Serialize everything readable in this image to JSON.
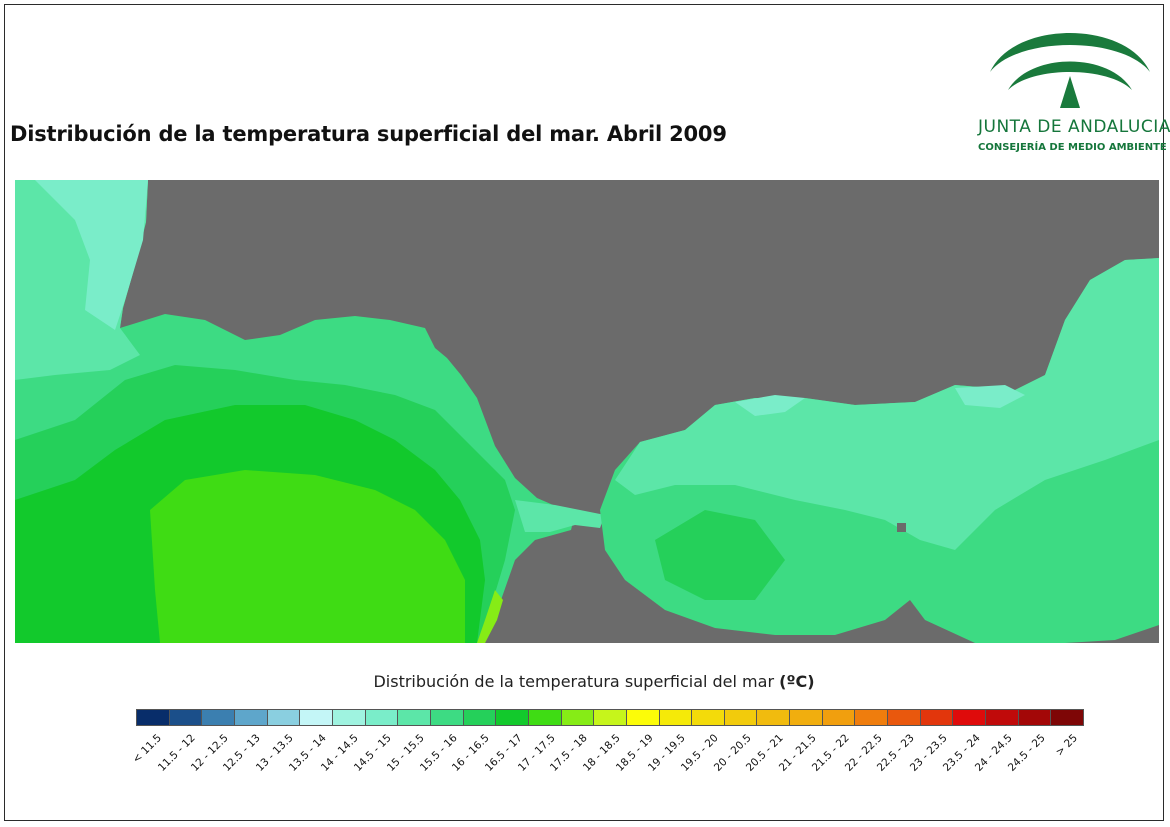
{
  "title": "Distribución de la temperatura superficial del mar. Abril 2009",
  "logo": {
    "name": "JUNTA DE ANDALUCIA",
    "subtitle": "CONSEJERÍA DE MEDIO AMBIENTE",
    "color": "#1a7a3c"
  },
  "legend": {
    "title": "Distribución de la temperatura superficial del mar",
    "unit": "(ºC)",
    "classes": [
      {
        "label": "< 11.5",
        "color": "#082d6a"
      },
      {
        "label": "11.5 - 12",
        "color": "#1b4f8a"
      },
      {
        "label": "12 - 12.5",
        "color": "#3b7fb0"
      },
      {
        "label": "12.5 - 13",
        "color": "#5ea6cb"
      },
      {
        "label": "13 - 13.5",
        "color": "#8acfe0"
      },
      {
        "label": "13.5 - 14",
        "color": "#c4f6f7"
      },
      {
        "label": "14 - 14.5",
        "color": "#9ff3e0"
      },
      {
        "label": "14.5 - 15",
        "color": "#7aedc9"
      },
      {
        "label": "15 - 15.5",
        "color": "#5ce6a8"
      },
      {
        "label": "15.5 - 16",
        "color": "#3ddb83"
      },
      {
        "label": "16 - 16.5",
        "color": "#25d05a"
      },
      {
        "label": "16.5 - 17",
        "color": "#12c92c"
      },
      {
        "label": "17 - 17.5",
        "color": "#3fdc14"
      },
      {
        "label": "17.5 - 18",
        "color": "#86ec16"
      },
      {
        "label": "18 - 18.5",
        "color": "#c6f51b"
      },
      {
        "label": "18.5 - 19",
        "color": "#fcfc08"
      },
      {
        "label": "19 - 19.5",
        "color": "#f5ea08"
      },
      {
        "label": "19.5 - 20",
        "color": "#f3db0a"
      },
      {
        "label": "20 - 20.5",
        "color": "#f2cb0c"
      },
      {
        "label": "20.5 - 21",
        "color": "#f1bb0e"
      },
      {
        "label": "21 - 21.5",
        "color": "#f1ae0e"
      },
      {
        "label": "21.5 - 22",
        "color": "#f19f0e"
      },
      {
        "label": "22 - 22.5",
        "color": "#ef7d0d"
      },
      {
        "label": "22.5 - 23",
        "color": "#e9580d"
      },
      {
        "label": "23 - 23.5",
        "color": "#e2360c"
      },
      {
        "label": "23.5 - 24",
        "color": "#df0b0b"
      },
      {
        "label": "24 - 24.5",
        "color": "#c00a0a"
      },
      {
        "label": "24.5 - 25",
        "color": "#a30707"
      },
      {
        "label": "> 25",
        "color": "#7e0606"
      }
    ]
  },
  "map": {
    "land_color": "#6b6b6b",
    "sea_colors": {
      "t14_5_15": "#7aedc9",
      "t15_15_5": "#5ce6a8",
      "t15_5_16": "#3ddb83",
      "t16_16_5": "#25d05a",
      "t16_5_17": "#12c92c",
      "t17_17_5": "#3fdc14",
      "t17_5_18": "#86ec16"
    }
  }
}
